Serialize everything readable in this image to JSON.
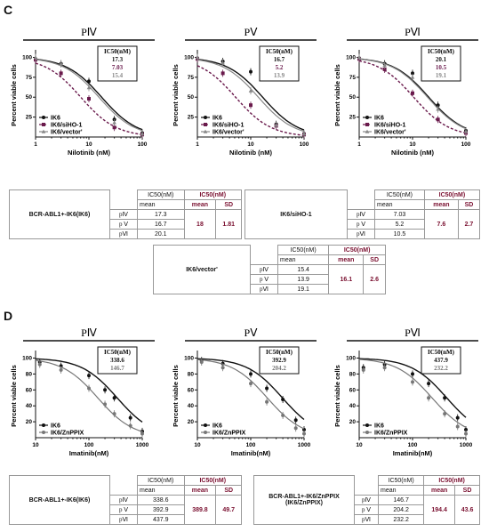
{
  "panels": [
    {
      "letter": "C"
    },
    {
      "letter": "D"
    }
  ],
  "charts": [
    {
      "id": "C1",
      "title": "PⅣ",
      "xlabel": "Nilotinib (nM)",
      "ylabel": "Percent viable cells",
      "xticks": [
        "1",
        "10",
        "100"
      ],
      "yticks": [
        "100",
        "75",
        "50",
        "25"
      ],
      "box_header": "IC50(nM)",
      "box_values": [
        "17.3",
        "7.03",
        "15.4"
      ],
      "legend": [
        "IK6",
        "IK6/siHO-1",
        "IK6/vector'"
      ],
      "chart_data": {
        "type": "line",
        "xscale": "log",
        "xlim": [
          1,
          100
        ],
        "ylim": [
          0,
          105
        ],
        "series": [
          {
            "name": "IK6",
            "ic50": 17.3,
            "points": [
              [
                1,
                98
              ],
              [
                3,
                92
              ],
              [
                10,
                70
              ],
              [
                30,
                22
              ],
              [
                100,
                5
              ]
            ]
          },
          {
            "name": "IK6/siHO-1",
            "ic50": 7.03,
            "points": [
              [
                1,
                97
              ],
              [
                3,
                80
              ],
              [
                10,
                48
              ],
              [
                30,
                12
              ],
              [
                100,
                3
              ]
            ]
          },
          {
            "name": "IK6/vector'",
            "ic50": 15.4,
            "points": [
              [
                1,
                100
              ],
              [
                3,
                92
              ],
              [
                10,
                62
              ],
              [
                30,
                18
              ],
              [
                100,
                4
              ]
            ]
          }
        ]
      }
    },
    {
      "id": "C2",
      "title": "PⅤ",
      "xlabel": "Nilotinib (nM)",
      "ylabel": "Percent viable cells",
      "xticks": [
        "1",
        "10",
        "100"
      ],
      "yticks": [
        "100",
        "75",
        "50",
        "25"
      ],
      "box_header": "IC50(nM)",
      "box_values": [
        "16.7",
        "5.2",
        "13.9"
      ],
      "legend": [
        "IK6",
        "IK6/siHO-1",
        "IK6/vector'"
      ],
      "chart_data": {
        "type": "line",
        "xscale": "log",
        "xlim": [
          1,
          100
        ],
        "ylim": [
          0,
          105
        ],
        "series": [
          {
            "name": "IK6",
            "ic50": 16.7,
            "points": [
              [
                1,
                99
              ],
              [
                3,
                95
              ],
              [
                10,
                82
              ],
              [
                30,
                16
              ],
              [
                100,
                4
              ]
            ]
          },
          {
            "name": "IK6/siHO-1",
            "ic50": 5.2,
            "points": [
              [
                1,
                98
              ],
              [
                3,
                80
              ],
              [
                10,
                40
              ],
              [
                30,
                14
              ],
              [
                100,
                3
              ]
            ]
          },
          {
            "name": "IK6/vector'",
            "ic50": 13.9,
            "points": [
              [
                1,
                100
              ],
              [
                3,
                93
              ],
              [
                10,
                58
              ],
              [
                30,
                15
              ],
              [
                100,
                4
              ]
            ]
          }
        ]
      }
    },
    {
      "id": "C3",
      "title": "PⅥ",
      "xlabel": "Nilotinib (nM)",
      "ylabel": "Percent viable cells",
      "xticks": [
        "1",
        "10",
        "100"
      ],
      "yticks": [
        "100",
        "75",
        "50",
        "25"
      ],
      "box_header": "IC50(nM)",
      "box_values": [
        "20.1",
        "10.5",
        "19.1"
      ],
      "legend": [
        "IK6",
        "IK6/siHO-1",
        "IK6/vector'"
      ],
      "chart_data": {
        "type": "line",
        "xscale": "log",
        "xlim": [
          1,
          100
        ],
        "ylim": [
          0,
          105
        ],
        "series": [
          {
            "name": "IK6",
            "ic50": 20.1,
            "points": [
              [
                1,
                99
              ],
              [
                3,
                92
              ],
              [
                10,
                80
              ],
              [
                30,
                40
              ],
              [
                100,
                8
              ]
            ]
          },
          {
            "name": "IK6/siHO-1",
            "ic50": 10.5,
            "points": [
              [
                1,
                98
              ],
              [
                3,
                85
              ],
              [
                10,
                55
              ],
              [
                30,
                22
              ],
              [
                100,
                5
              ]
            ]
          },
          {
            "name": "IK6/vector'",
            "ic50": 19.1,
            "points": [
              [
                1,
                100
              ],
              [
                3,
                90
              ],
              [
                10,
                75
              ],
              [
                30,
                35
              ],
              [
                100,
                7
              ]
            ]
          }
        ]
      }
    },
    {
      "id": "D1",
      "title": "PⅣ",
      "xlabel": "Imatinib(nM)",
      "ylabel": "Percent viable cells",
      "xticks": [
        "10",
        "100",
        "1000"
      ],
      "yticks": [
        "100",
        "80",
        "60",
        "40",
        "20"
      ],
      "box_header": "IC50(nM)",
      "box_values": [
        "338.6",
        "146.7"
      ],
      "legend": [
        "IK6",
        "IK6/ZnPPIX"
      ],
      "chart_data": {
        "type": "line",
        "xscale": "log",
        "xlim": [
          10,
          1000
        ],
        "ylim": [
          0,
          105
        ],
        "series": [
          {
            "name": "IK6",
            "ic50": 338.6,
            "points": [
              [
                12,
                95
              ],
              [
                30,
                90
              ],
              [
                100,
                78
              ],
              [
                200,
                60
              ],
              [
                300,
                50
              ],
              [
                600,
                25
              ],
              [
                1000,
                8
              ]
            ]
          },
          {
            "name": "IK6/ZnPPIX",
            "ic50": 146.7,
            "points": [
              [
                12,
                92
              ],
              [
                30,
                85
              ],
              [
                100,
                62
              ],
              [
                200,
                42
              ],
              [
                300,
                30
              ],
              [
                600,
                15
              ],
              [
                1000,
                5
              ]
            ]
          }
        ]
      }
    },
    {
      "id": "D2",
      "title": "PⅤ",
      "xlabel": "Imatinib(nM)",
      "ylabel": "Percent viable cells",
      "xticks": [
        "10",
        "100",
        "1000"
      ],
      "yticks": [
        "100",
        "80",
        "60",
        "40",
        "20"
      ],
      "box_header": "IC50(nM)",
      "box_values": [
        "392.9",
        "204.2"
      ],
      "legend": [
        "IK6",
        "IK6/ZnPPIX"
      ],
      "chart_data": {
        "type": "line",
        "xscale": "log",
        "xlim": [
          10,
          1000
        ],
        "ylim": [
          0,
          105
        ],
        "series": [
          {
            "name": "IK6",
            "ic50": 392.9,
            "points": [
              [
                12,
                97
              ],
              [
                30,
                93
              ],
              [
                100,
                80
              ],
              [
                200,
                62
              ],
              [
                400,
                48
              ],
              [
                700,
                22
              ],
              [
                1000,
                10
              ]
            ]
          },
          {
            "name": "IK6/ZnPPIX",
            "ic50": 204.2,
            "points": [
              [
                12,
                95
              ],
              [
                30,
                88
              ],
              [
                100,
                68
              ],
              [
                200,
                45
              ],
              [
                400,
                28
              ],
              [
                700,
                12
              ],
              [
                1000,
                5
              ]
            ]
          }
        ]
      }
    },
    {
      "id": "D3",
      "title": "PⅥ",
      "xlabel": "Imatinib(nM)",
      "ylabel": "Percent viable cells",
      "xticks": [
        "10",
        "100",
        "1000"
      ],
      "yticks": [
        "100",
        "80",
        "60",
        "40",
        "20"
      ],
      "box_header": "IC50(nM)",
      "box_values": [
        "437.9",
        "232.2"
      ],
      "legend": [
        "IK6",
        "IK6/ZnPPIX"
      ],
      "chart_data": {
        "type": "line",
        "xscale": "log",
        "xlim": [
          10,
          1000
        ],
        "ylim": [
          0,
          105
        ],
        "series": [
          {
            "name": "IK6",
            "ic50": 437.9,
            "points": [
              [
                12,
                88
              ],
              [
                30,
                92
              ],
              [
                100,
                80
              ],
              [
                200,
                68
              ],
              [
                400,
                50
              ],
              [
                700,
                25
              ],
              [
                1000,
                10
              ]
            ]
          },
          {
            "name": "IK6/ZnPPIX",
            "ic50": 232.2,
            "points": [
              [
                12,
                85
              ],
              [
                30,
                88
              ],
              [
                100,
                70
              ],
              [
                200,
                50
              ],
              [
                400,
                30
              ],
              [
                700,
                14
              ],
              [
                1000,
                5
              ]
            ]
          }
        ]
      }
    }
  ],
  "tables": {
    "c_ik6": {
      "name": "BCR-ABL1+-IK6(IK6)",
      "col1": "IC50(nM)",
      "col1b": "mean",
      "col2": "IC50(nM)",
      "mean_h": "mean",
      "sd_h": "SD",
      "rows": [
        {
          "p": "pⅣ",
          "v": "17.3"
        },
        {
          "p": "p Ⅴ",
          "v": "16.7"
        },
        {
          "p": "pⅥ",
          "v": "20.1"
        }
      ],
      "mean": "18",
      "sd": "1.81"
    },
    "c_si": {
      "name": "IK6/siHO-1",
      "col1": "IC50(nM)",
      "col1b": "mean",
      "col2": "IC50(nM)",
      "mean_h": "mean",
      "sd_h": "SD",
      "rows": [
        {
          "p": "pⅣ",
          "v": "7.03"
        },
        {
          "p": "p Ⅴ",
          "v": "5.2"
        },
        {
          "p": "pⅥ",
          "v": "10.5"
        }
      ],
      "mean": "7.6",
      "sd": "2.7"
    },
    "c_vec": {
      "name": "IK6/vector'",
      "col1": "IC50(nM)",
      "col1b": "mean",
      "col2": "IC50(nM)",
      "mean_h": "mean",
      "sd_h": "SD",
      "rows": [
        {
          "p": "pⅣ",
          "v": "15.4"
        },
        {
          "p": "p Ⅴ",
          "v": "13.9"
        },
        {
          "p": "pⅥ",
          "v": "19.1"
        }
      ],
      "mean": "16.1",
      "sd": "2.6"
    },
    "d_ik6": {
      "name": "BCR-ABL1+-IK6(IK6)",
      "col1": "IC50(nM)",
      "col1b": "mean",
      "col2": "IC50(nM)",
      "mean_h": "mean",
      "sd_h": "SD",
      "rows": [
        {
          "p": "pⅣ",
          "v": "338.6"
        },
        {
          "p": "p Ⅴ",
          "v": "392.9"
        },
        {
          "p": "pⅥ",
          "v": "437.9"
        }
      ],
      "mean": "389.8",
      "sd": "49.7"
    },
    "d_zn": {
      "name": "BCR-ABL1+-IK6/ZnPPIX",
      "name2": "(IK6/ZnPPIX)",
      "col1": "IC50(nM)",
      "col1b": "mean",
      "col2": "IC50(nM)",
      "mean_h": "mean",
      "sd_h": "SD",
      "rows": [
        {
          "p": "pⅣ",
          "v": "146.7"
        },
        {
          "p": "p Ⅴ",
          "v": "204.2"
        },
        {
          "p": "pⅥ",
          "v": "232.2"
        }
      ],
      "mean": "194.4",
      "sd": "43.6"
    }
  },
  "colors": {
    "ik6": "#111111",
    "siho": "#6a1a4c",
    "vector": "#888888",
    "znppix": "#777777",
    "red": "#7a1030"
  }
}
